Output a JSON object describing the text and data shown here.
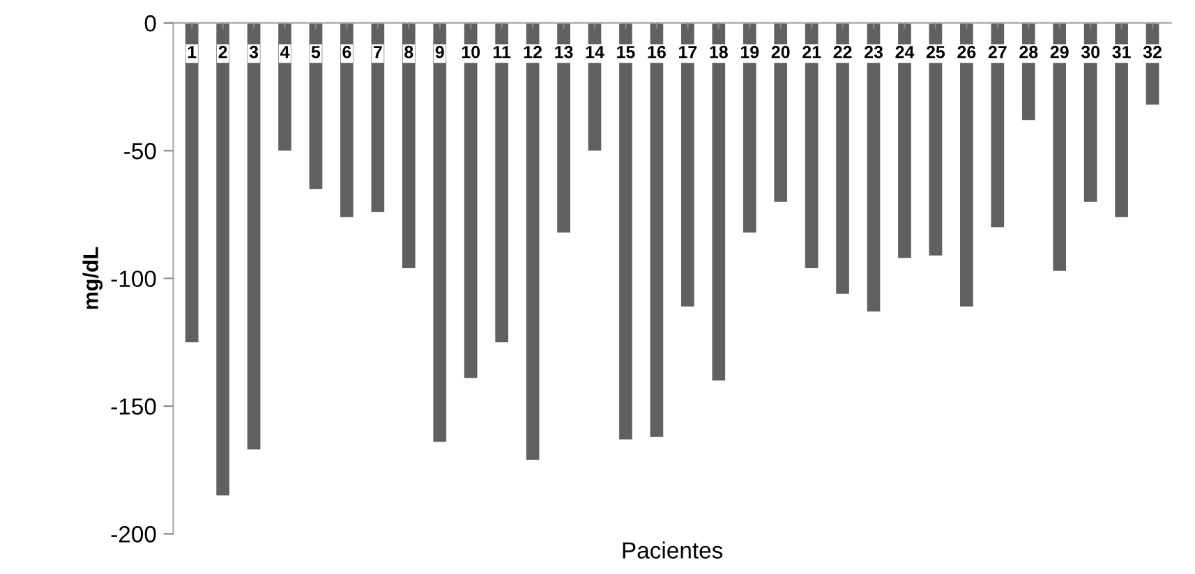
{
  "chart_data": {
    "type": "bar",
    "xlabel": "Pacientes",
    "ylabel": "mg/dL",
    "categories": [
      "1",
      "2",
      "3",
      "4",
      "5",
      "6",
      "7",
      "8",
      "9",
      "10",
      "11",
      "12",
      "13",
      "14",
      "15",
      "16",
      "17",
      "18",
      "19",
      "20",
      "21",
      "22",
      "23",
      "24",
      "25",
      "26",
      "27",
      "28",
      "29",
      "30",
      "31",
      "32"
    ],
    "series": [
      {
        "color": "#606060",
        "values": [
          -125,
          -185,
          -167,
          -50,
          -65,
          -76,
          -74,
          -96,
          -164,
          -139,
          -125,
          -171,
          -82,
          -50,
          -163,
          -162,
          -111,
          -140,
          -82,
          -70,
          -96,
          -106,
          -113,
          -92,
          -91,
          -111,
          -80,
          -38,
          -97,
          -70,
          -76,
          -32
        ]
      }
    ],
    "ylim": [
      -200,
      0
    ],
    "yticks": [
      -200,
      -150,
      -100,
      -50,
      0
    ],
    "grid": false,
    "legend": false
  }
}
